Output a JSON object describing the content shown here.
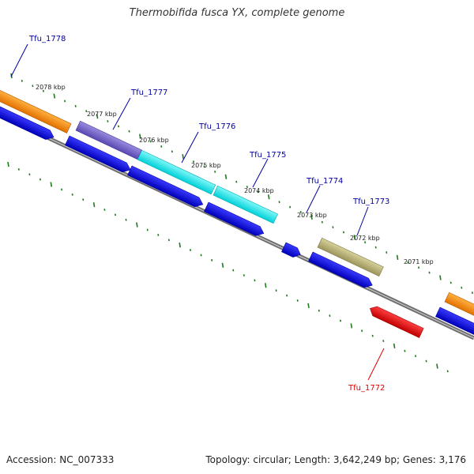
{
  "title": "Thermobifida fusca YX, complete genome",
  "footer": {
    "accession": "Accession: NC_007333",
    "info": "Topology: circular; Length: 3,642,249 bp; Genes: 3,176"
  },
  "colors": {
    "backbone": "#7a7a7a",
    "ticks": "#1f7a1f",
    "cds_forward": "#1010e0",
    "label_forward": "#0000a0",
    "label_reverse": "#e00000",
    "Tfu_1778": "#ff8c00",
    "Tfu_1777": "#7a6acc",
    "Tfu_1776": "#18f0f0",
    "Tfu_1775": "#18f0f0",
    "Tfu_1774": "#b7b27a",
    "Tfu_1772": "#ee1010"
  },
  "scale_labels": [
    "2078 kbp",
    "2077 kbp",
    "2076 kbp",
    "2075 kbp",
    "2074 kbp",
    "2073 kbp",
    "2072 kbp",
    "2071 kbp"
  ],
  "genes": [
    {
      "name": "Tfu_1778",
      "strand": "forward"
    },
    {
      "name": "Tfu_1777",
      "strand": "forward"
    },
    {
      "name": "Tfu_1776",
      "strand": "forward"
    },
    {
      "name": "Tfu_1775",
      "strand": "forward"
    },
    {
      "name": "Tfu_1774",
      "strand": "forward"
    },
    {
      "name": "Tfu_1773",
      "strand": "forward"
    },
    {
      "name": "Tfu_1772",
      "strand": "reverse"
    }
  ]
}
